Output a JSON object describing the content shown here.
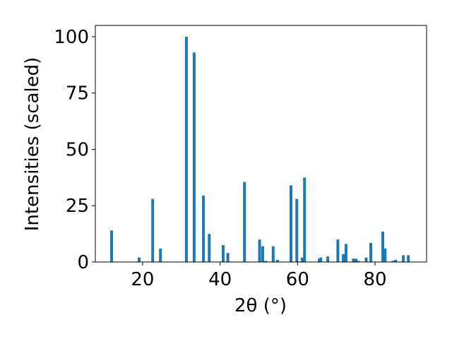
{
  "chart_data": {
    "type": "bar",
    "x_label": "2θ (°)",
    "y_label": "Intensities (scaled)",
    "color": "#1f77b4",
    "x": [
      12.0,
      19.1,
      22.6,
      24.6,
      31.3,
      33.3,
      35.7,
      37.2,
      40.8,
      42.0,
      46.3,
      50.2,
      51.0,
      51.8,
      53.7,
      54.8,
      58.3,
      59.8,
      61.2,
      61.8,
      65.6,
      66.0,
      67.8,
      70.4,
      71.8,
      72.5,
      74.4,
      75.1,
      75.7,
      77.7,
      78.9,
      82.0,
      82.6,
      84.6,
      85.3,
      87.3,
      88.6
    ],
    "values": [
      14,
      2,
      28,
      6,
      100,
      93,
      29.5,
      12.5,
      7.5,
      4,
      35.5,
      10,
      7,
      0.5,
      7,
      1,
      34,
      28,
      2,
      37.5,
      1.5,
      2,
      2.5,
      10,
      3.5,
      8,
      1.5,
      1.5,
      0.5,
      2,
      8.5,
      13.5,
      6,
      0.5,
      1,
      3,
      3
    ],
    "xlim": [
      7.8,
      93.3
    ],
    "ylim": [
      0,
      105
    ],
    "xticks": [
      20,
      40,
      60,
      80
    ],
    "yticks": [
      0,
      25,
      50,
      75,
      100
    ]
  }
}
